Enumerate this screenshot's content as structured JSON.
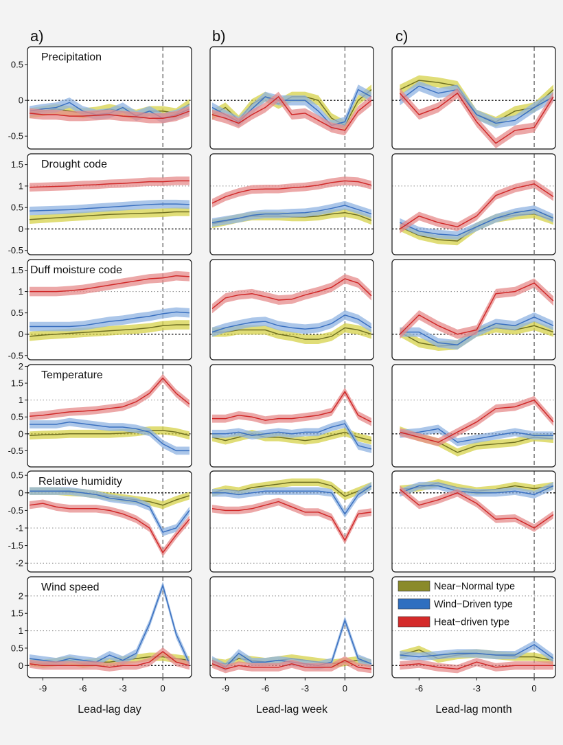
{
  "panel_letters": [
    "a)",
    "b)",
    "c)"
  ],
  "xlabels": [
    "Lead-lag day",
    "Lead-lag week",
    "Lead-lag month"
  ],
  "legend": [
    {
      "label": "Near−Normal type",
      "color": "#8a8a2a"
    },
    {
      "label": "Wind−Driven type",
      "color": "#2f6fc0"
    },
    {
      "label": "Heat−driven type",
      "color": "#d42a2a"
    }
  ],
  "series_colors": {
    "near_line": "#6f6f22",
    "near_band": "#d6d24a",
    "wind_line": "#3a70c0",
    "wind_band": "#8fb3e2",
    "heat_line": "#d02828",
    "heat_band": "#e58b8b"
  },
  "columns": [
    {
      "x": [
        -10,
        -9,
        -8,
        -7,
        -6,
        -5,
        -4,
        -3,
        -2,
        -1,
        0,
        1,
        2
      ],
      "xlim": [
        -10,
        2
      ],
      "ticks": [
        -9,
        -6,
        -3,
        0
      ]
    },
    {
      "x": [
        -10,
        -9,
        -8,
        -7,
        -6,
        -5,
        -4,
        -3,
        -2,
        -1,
        0,
        1,
        2
      ],
      "xlim": [
        -10,
        2
      ],
      "ticks": [
        -9,
        -6,
        -3,
        0
      ]
    },
    {
      "x": [
        -7,
        -6,
        -5,
        -4,
        -3,
        -2,
        -1,
        0,
        1
      ],
      "xlim": [
        -7.3,
        1
      ],
      "ticks": [
        -6,
        -3,
        0
      ]
    }
  ],
  "rows": [
    {
      "name": "Precipitation",
      "ylim": [
        -0.68,
        0.75
      ],
      "ticks": [
        0.5,
        0,
        -0.5
      ],
      "tick_labels": [
        "0.5",
        "0",
        "-0.5"
      ],
      "dotted": [],
      "band": 0.07
    },
    {
      "name": "Drought code",
      "ylim": [
        -0.6,
        1.75
      ],
      "ticks": [
        1.5,
        1,
        0.5,
        0,
        -0.5
      ],
      "tick_labels": [
        "1.5",
        "1",
        "0.5",
        "0",
        "-0.5"
      ],
      "dotted": [
        1
      ],
      "band": 0.1
    },
    {
      "name": "Duff moisture code",
      "ylim": [
        -0.6,
        1.75
      ],
      "ticks": [
        1.5,
        1,
        0.5,
        0,
        -0.5
      ],
      "tick_labels": [
        "1.5",
        "1",
        "0.5",
        "0",
        "-0.5"
      ],
      "dotted": [
        1
      ],
      "band": 0.11
    },
    {
      "name": "Temperature",
      "ylim": [
        -0.98,
        2.05
      ],
      "ticks": [
        2,
        1.5,
        1,
        0.5,
        0,
        -0.5
      ],
      "tick_labels": [
        "2",
        "1.5",
        "1",
        "0.5",
        "0",
        "-0.5"
      ],
      "dotted": [
        1
      ],
      "band": 0.12
    },
    {
      "name": "Relative humidity",
      "ylim": [
        -2.25,
        0.62
      ],
      "ticks": [
        0.5,
        0,
        -0.5,
        -1,
        -1.5,
        -2
      ],
      "tick_labels": [
        "0.5",
        "0",
        "-0.5",
        "-1",
        "-1.5",
        "-2"
      ],
      "dotted": [
        -1,
        -2
      ],
      "band": 0.11
    },
    {
      "name": "Wind speed",
      "ylim": [
        -0.35,
        2.55
      ],
      "ticks": [
        2,
        1.5,
        1,
        0.5,
        0
      ],
      "tick_labels": [
        "2",
        "1.5",
        "1",
        "0.5",
        "0"
      ],
      "dotted": [
        1,
        2
      ],
      "band": 0.12
    }
  ],
  "chart_data": {
    "type": "line",
    "note_series": [
      "Near−Normal type",
      "Wind−Driven type",
      "Heat−driven type"
    ],
    "panels": [
      {
        "row": 0,
        "col": 0,
        "near": [
          -0.18,
          -0.15,
          -0.12,
          -0.15,
          -0.18,
          -0.16,
          -0.12,
          -0.16,
          -0.2,
          -0.15,
          -0.15,
          -0.18,
          -0.05
        ],
        "wind": [
          -0.15,
          -0.12,
          -0.1,
          -0.03,
          -0.15,
          -0.2,
          -0.18,
          -0.1,
          -0.22,
          -0.15,
          -0.25,
          -0.2,
          -0.12
        ],
        "heat": [
          -0.18,
          -0.2,
          -0.2,
          -0.22,
          -0.22,
          -0.21,
          -0.2,
          -0.22,
          -0.23,
          -0.25,
          -0.25,
          -0.22,
          -0.15
        ]
      },
      {
        "row": 0,
        "col": 1,
        "near": [
          -0.2,
          -0.1,
          -0.28,
          -0.05,
          0.05,
          -0.05,
          0.05,
          0.05,
          0.0,
          -0.25,
          -0.35,
          0.0,
          0.15
        ],
        "wind": [
          -0.1,
          -0.2,
          -0.3,
          -0.12,
          0.05,
          0.0,
          0.0,
          0.0,
          -0.15,
          -0.35,
          -0.3,
          0.15,
          0.05
        ],
        "heat": [
          -0.2,
          -0.25,
          -0.32,
          -0.2,
          -0.1,
          0.05,
          -0.2,
          -0.18,
          -0.28,
          -0.38,
          -0.42,
          -0.15,
          0.0
        ]
      },
      {
        "row": 0,
        "col": 2,
        "near": [
          0.15,
          0.28,
          0.25,
          0.2,
          -0.2,
          -0.3,
          -0.15,
          -0.1,
          0.15
        ],
        "wind": [
          0.0,
          0.2,
          0.1,
          0.15,
          -0.2,
          -0.32,
          -0.28,
          -0.1,
          0.05
        ],
        "heat": [
          0.1,
          -0.2,
          -0.1,
          0.1,
          -0.3,
          -0.6,
          -0.42,
          -0.38,
          0.05
        ]
      },
      {
        "row": 1,
        "col": 0,
        "near": [
          0.22,
          0.24,
          0.26,
          0.28,
          0.3,
          0.32,
          0.34,
          0.35,
          0.36,
          0.37,
          0.38,
          0.4,
          0.4
        ],
        "wind": [
          0.42,
          0.43,
          0.44,
          0.45,
          0.47,
          0.49,
          0.51,
          0.53,
          0.55,
          0.57,
          0.58,
          0.58,
          0.57
        ],
        "heat": [
          0.97,
          0.98,
          0.99,
          1.0,
          1.02,
          1.03,
          1.05,
          1.06,
          1.08,
          1.1,
          1.1,
          1.12,
          1.12
        ]
      },
      {
        "row": 1,
        "col": 1,
        "near": [
          0.12,
          0.18,
          0.25,
          0.3,
          0.3,
          0.3,
          0.28,
          0.28,
          0.3,
          0.35,
          0.38,
          0.32,
          0.2
        ],
        "wind": [
          0.15,
          0.2,
          0.25,
          0.32,
          0.35,
          0.35,
          0.37,
          0.38,
          0.42,
          0.48,
          0.55,
          0.45,
          0.35
        ],
        "heat": [
          0.6,
          0.75,
          0.85,
          0.92,
          0.93,
          0.93,
          0.96,
          0.98,
          1.02,
          1.08,
          1.12,
          1.1,
          1.02
        ]
      },
      {
        "row": 1,
        "col": 2,
        "near": [
          0.05,
          -0.15,
          -0.25,
          -0.28,
          0.05,
          0.25,
          0.32,
          0.35,
          0.2
        ],
        "wind": [
          0.15,
          -0.05,
          -0.12,
          -0.15,
          0.05,
          0.25,
          0.38,
          0.45,
          0.25
        ],
        "heat": [
          0.0,
          0.3,
          0.15,
          0.05,
          0.3,
          0.78,
          0.95,
          1.05,
          0.75
        ]
      },
      {
        "row": 2,
        "col": 0,
        "near": [
          -0.05,
          -0.02,
          0.0,
          0.02,
          0.04,
          0.06,
          0.08,
          0.1,
          0.12,
          0.15,
          0.2,
          0.22,
          0.22
        ],
        "wind": [
          0.18,
          0.18,
          0.18,
          0.18,
          0.2,
          0.25,
          0.3,
          0.33,
          0.38,
          0.42,
          0.48,
          0.52,
          0.5
        ],
        "heat": [
          1.0,
          1.0,
          1.0,
          1.02,
          1.05,
          1.1,
          1.15,
          1.2,
          1.25,
          1.3,
          1.32,
          1.37,
          1.35
        ]
      },
      {
        "row": 2,
        "col": 1,
        "near": [
          0.05,
          0.05,
          0.1,
          0.1,
          0.1,
          0.0,
          -0.05,
          -0.12,
          -0.12,
          -0.05,
          0.15,
          0.1,
          0.0
        ],
        "wind": [
          0.05,
          0.15,
          0.22,
          0.28,
          0.3,
          0.2,
          0.15,
          0.12,
          0.15,
          0.25,
          0.45,
          0.35,
          0.15
        ],
        "heat": [
          0.6,
          0.85,
          0.92,
          0.95,
          0.88,
          0.8,
          0.82,
          0.92,
          1.0,
          1.1,
          1.3,
          1.2,
          0.9
        ]
      },
      {
        "row": 2,
        "col": 2,
        "near": [
          0.05,
          -0.2,
          -0.28,
          -0.25,
          0.05,
          0.15,
          0.1,
          0.2,
          0.05
        ],
        "wind": [
          0.05,
          0.05,
          -0.2,
          -0.25,
          0.05,
          0.25,
          0.2,
          0.4,
          0.2
        ],
        "heat": [
          0.0,
          0.45,
          0.2,
          0.0,
          0.1,
          0.95,
          1.0,
          1.2,
          0.78
        ]
      },
      {
        "row": 3,
        "col": 0,
        "near": [
          -0.05,
          -0.03,
          -0.02,
          0.0,
          0.0,
          0.0,
          0.0,
          0.02,
          0.05,
          0.1,
          0.1,
          0.05,
          -0.05
        ],
        "wind": [
          0.28,
          0.28,
          0.28,
          0.35,
          0.3,
          0.25,
          0.2,
          0.2,
          0.15,
          0.05,
          -0.3,
          -0.5,
          -0.5
        ],
        "heat": [
          0.52,
          0.55,
          0.6,
          0.65,
          0.67,
          0.7,
          0.75,
          0.8,
          0.95,
          1.2,
          1.65,
          1.2,
          0.88
        ]
      },
      {
        "row": 3,
        "col": 1,
        "near": [
          -0.1,
          -0.2,
          -0.1,
          0.0,
          -0.1,
          -0.1,
          -0.15,
          -0.2,
          -0.15,
          -0.05,
          0.05,
          -0.1,
          -0.2
        ],
        "wind": [
          0.0,
          0.0,
          0.05,
          -0.05,
          0.0,
          0.05,
          0.0,
          0.05,
          0.05,
          0.2,
          0.3,
          -0.35,
          -0.45
        ],
        "heat": [
          0.45,
          0.45,
          0.55,
          0.5,
          0.4,
          0.45,
          0.45,
          0.5,
          0.55,
          0.65,
          1.25,
          0.55,
          0.35
        ]
      },
      {
        "row": 3,
        "col": 2,
        "near": [
          0.1,
          -0.1,
          -0.25,
          -0.55,
          -0.35,
          -0.3,
          -0.25,
          -0.1,
          -0.15
        ],
        "wind": [
          0.0,
          0.05,
          0.15,
          -0.25,
          -0.15,
          -0.05,
          0.05,
          -0.05,
          -0.05
        ],
        "heat": [
          0.05,
          -0.1,
          -0.25,
          0.05,
          0.35,
          0.75,
          0.8,
          1.0,
          0.35
        ]
      },
      {
        "row": 4,
        "col": 0,
        "near": [
          0.05,
          0.05,
          0.05,
          0.02,
          0.0,
          -0.05,
          -0.1,
          -0.15,
          -0.2,
          -0.25,
          -0.35,
          -0.2,
          -0.08
        ],
        "wind": [
          0.05,
          0.05,
          0.05,
          0.05,
          0.0,
          -0.05,
          -0.15,
          -0.2,
          -0.25,
          -0.4,
          -1.12,
          -1.0,
          -0.5
        ],
        "heat": [
          -0.35,
          -0.3,
          -0.4,
          -0.45,
          -0.45,
          -0.45,
          -0.5,
          -0.6,
          -0.75,
          -1.0,
          -1.7,
          -1.2,
          -0.75
        ]
      },
      {
        "row": 4,
        "col": 1,
        "near": [
          0.0,
          0.1,
          0.05,
          0.15,
          0.2,
          0.25,
          0.3,
          0.3,
          0.3,
          0.2,
          -0.1,
          0.05,
          0.2
        ],
        "wind": [
          0.0,
          0.0,
          -0.05,
          0.0,
          0.05,
          0.05,
          0.05,
          0.05,
          0.05,
          0.0,
          -0.6,
          -0.05,
          0.2
        ],
        "heat": [
          -0.45,
          -0.5,
          -0.5,
          -0.45,
          -0.35,
          -0.25,
          -0.4,
          -0.55,
          -0.55,
          -0.7,
          -1.35,
          -0.6,
          -0.55
        ]
      },
      {
        "row": 4,
        "col": 2,
        "near": [
          0.1,
          0.15,
          0.28,
          0.15,
          0.05,
          0.1,
          0.2,
          0.12,
          0.2
        ],
        "wind": [
          0.0,
          0.2,
          0.2,
          0.05,
          0.0,
          0.0,
          0.05,
          -0.05,
          0.2
        ],
        "heat": [
          0.1,
          -0.35,
          -0.2,
          0.0,
          -0.3,
          -0.75,
          -0.72,
          -1.0,
          -0.62
        ]
      },
      {
        "row": 5,
        "col": 0,
        "near": [
          0.1,
          0.05,
          0.1,
          0.15,
          0.05,
          0.1,
          0.1,
          0.15,
          0.2,
          0.25,
          0.25,
          0.2,
          0.15
        ],
        "wind": [
          0.2,
          0.15,
          0.1,
          0.2,
          0.15,
          0.1,
          0.3,
          0.15,
          0.35,
          1.2,
          2.3,
          0.9,
          0.05
        ],
        "heat": [
          0.05,
          0.0,
          0.0,
          0.0,
          0.0,
          0.0,
          -0.05,
          0.0,
          0.0,
          0.1,
          0.4,
          0.1,
          0.0
        ]
      },
      {
        "row": 5,
        "col": 1,
        "near": [
          0.1,
          0.05,
          0.2,
          0.15,
          0.1,
          0.15,
          0.2,
          0.15,
          0.1,
          0.05,
          0.1,
          0.15,
          0.05
        ],
        "wind": [
          0.15,
          -0.05,
          0.35,
          0.1,
          0.1,
          0.15,
          0.1,
          0.05,
          0.0,
          0.1,
          1.3,
          0.2,
          0.05
        ],
        "heat": [
          0.05,
          -0.1,
          0.0,
          -0.05,
          -0.05,
          -0.05,
          0.05,
          -0.05,
          -0.05,
          -0.05,
          0.15,
          -0.05,
          -0.1
        ]
      },
      {
        "row": 5,
        "col": 2,
        "near": [
          0.3,
          0.45,
          0.2,
          0.3,
          0.35,
          0.3,
          0.25,
          0.25,
          0.15
        ],
        "wind": [
          0.3,
          0.25,
          0.3,
          0.35,
          0.35,
          0.3,
          0.3,
          0.6,
          0.2
        ],
        "heat": [
          0.0,
          0.05,
          -0.05,
          -0.1,
          0.1,
          -0.05,
          0.0,
          0.0,
          0.0
        ]
      }
    ]
  }
}
